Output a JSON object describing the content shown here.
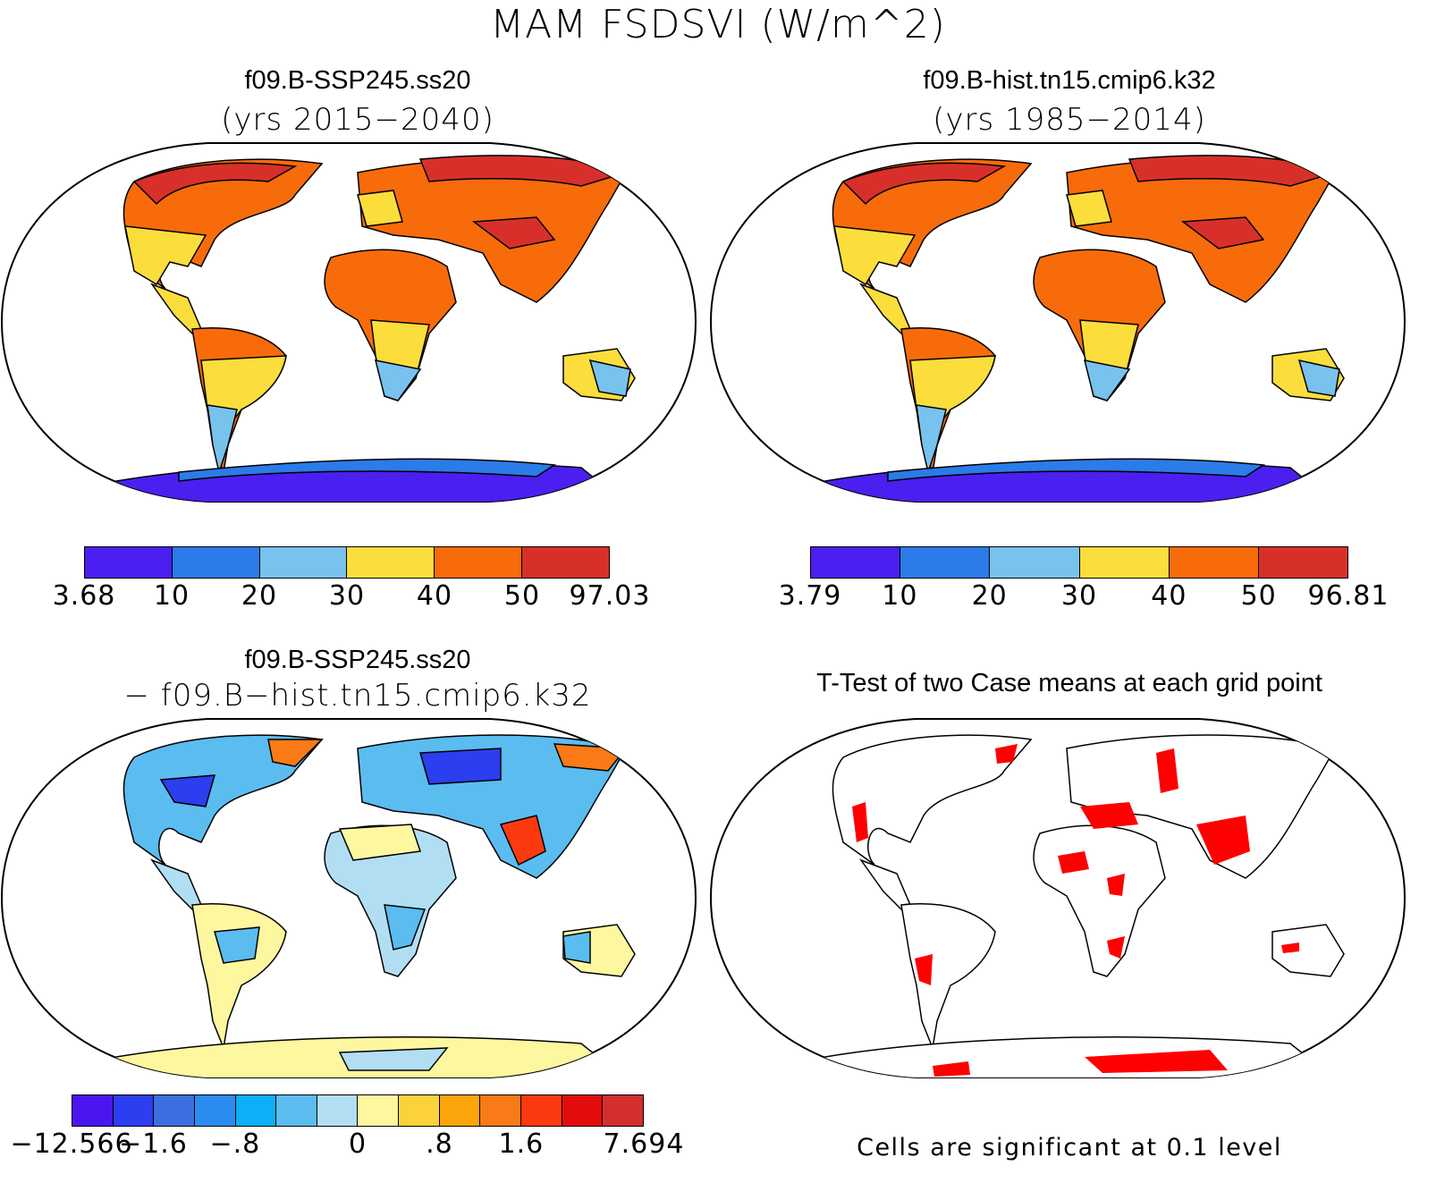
{
  "title": "MAM FSDSVI (W/m^2)",
  "panels": {
    "top_left": {
      "title": "f09.B-SSP245.ss20",
      "subtitle": "(yrs 2015−2040)",
      "colorbar": {
        "colors": [
          "#4b1ff0",
          "#2b7be8",
          "#78c2ee",
          "#fbdd3c",
          "#f86b0b",
          "#d7302a"
        ],
        "labels": [
          "3.68",
          "10",
          "20",
          "30",
          "40",
          "50",
          "97.03"
        ]
      }
    },
    "top_right": {
      "title": "f09.B-hist.tn15.cmip6.k32",
      "subtitle": "(yrs 1985−2014)",
      "colorbar": {
        "colors": [
          "#4b1ff0",
          "#2b7be8",
          "#78c2ee",
          "#fbdd3c",
          "#f86b0b",
          "#d7302a"
        ],
        "labels": [
          "3.79",
          "10",
          "20",
          "30",
          "40",
          "50",
          "96.81"
        ]
      }
    },
    "bottom_left": {
      "title": "f09.B-SSP245.ss20",
      "subtitle": "− f09.B−hist.tn15.cmip6.k32",
      "colorbar": {
        "colors": [
          "#4a16f0",
          "#2b3ef0",
          "#3e6fe0",
          "#2b8cf0",
          "#0bb0f8",
          "#5bbcf0",
          "#b2def4",
          "#fdf7a0",
          "#fcd23c",
          "#fba50a",
          "#f97a16",
          "#fb3a10",
          "#e30b0b",
          "#d32f2f"
        ],
        "tick_labels": [
          {
            "text": "−12.566",
            "index": 0
          },
          {
            "text": "−1.6",
            "index": 2
          },
          {
            "text": "−.8",
            "index": 4
          },
          {
            "text": "0",
            "index": 7
          },
          {
            "text": ".8",
            "index": 9
          },
          {
            "text": "1.6",
            "index": 11
          },
          {
            "text": "7.694",
            "index": 14
          }
        ]
      }
    },
    "bottom_right": {
      "title": "T-Test of two Case means at each grid point",
      "note": "Cells are significant at 0.1 level",
      "significance_color": "#ff0000"
    }
  }
}
